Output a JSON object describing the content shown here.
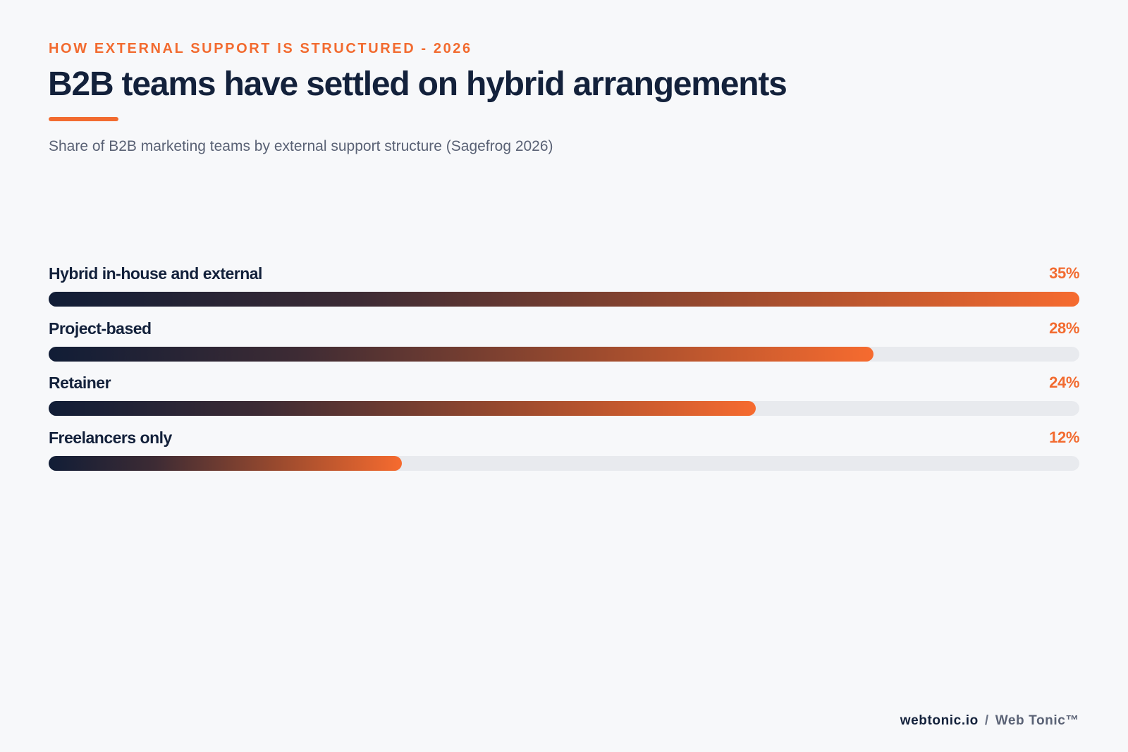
{
  "header": {
    "eyebrow": "HOW EXTERNAL SUPPORT IS STRUCTURED - 2026",
    "title": "B2B teams have settled on hybrid arrangements",
    "subtitle": "Share of B2B marketing teams by external support structure (Sagefrog 2026)"
  },
  "chart_data": {
    "type": "bar",
    "orientation": "horizontal",
    "title": "B2B teams have settled on hybrid arrangements",
    "subtitle": "Share of B2B marketing teams by external support structure (Sagefrog 2026)",
    "categories": [
      "Hybrid in-house and external",
      "Project-based",
      "Retainer",
      "Freelancers only"
    ],
    "values": [
      35,
      28,
      24,
      12
    ],
    "value_labels": [
      "35%",
      "28%",
      "24%",
      "12%"
    ],
    "unit": "%",
    "xlim": [
      0,
      35
    ],
    "grid": false,
    "legend": "none",
    "colors": {
      "gradient_start": "#111d36",
      "gradient_end": "#f66b2f",
      "track": "#e8eaee",
      "value_text": "#f26b30"
    }
  },
  "footer": {
    "site": "webtonic.io",
    "separator": "/",
    "brand": "Web Tonic™"
  }
}
